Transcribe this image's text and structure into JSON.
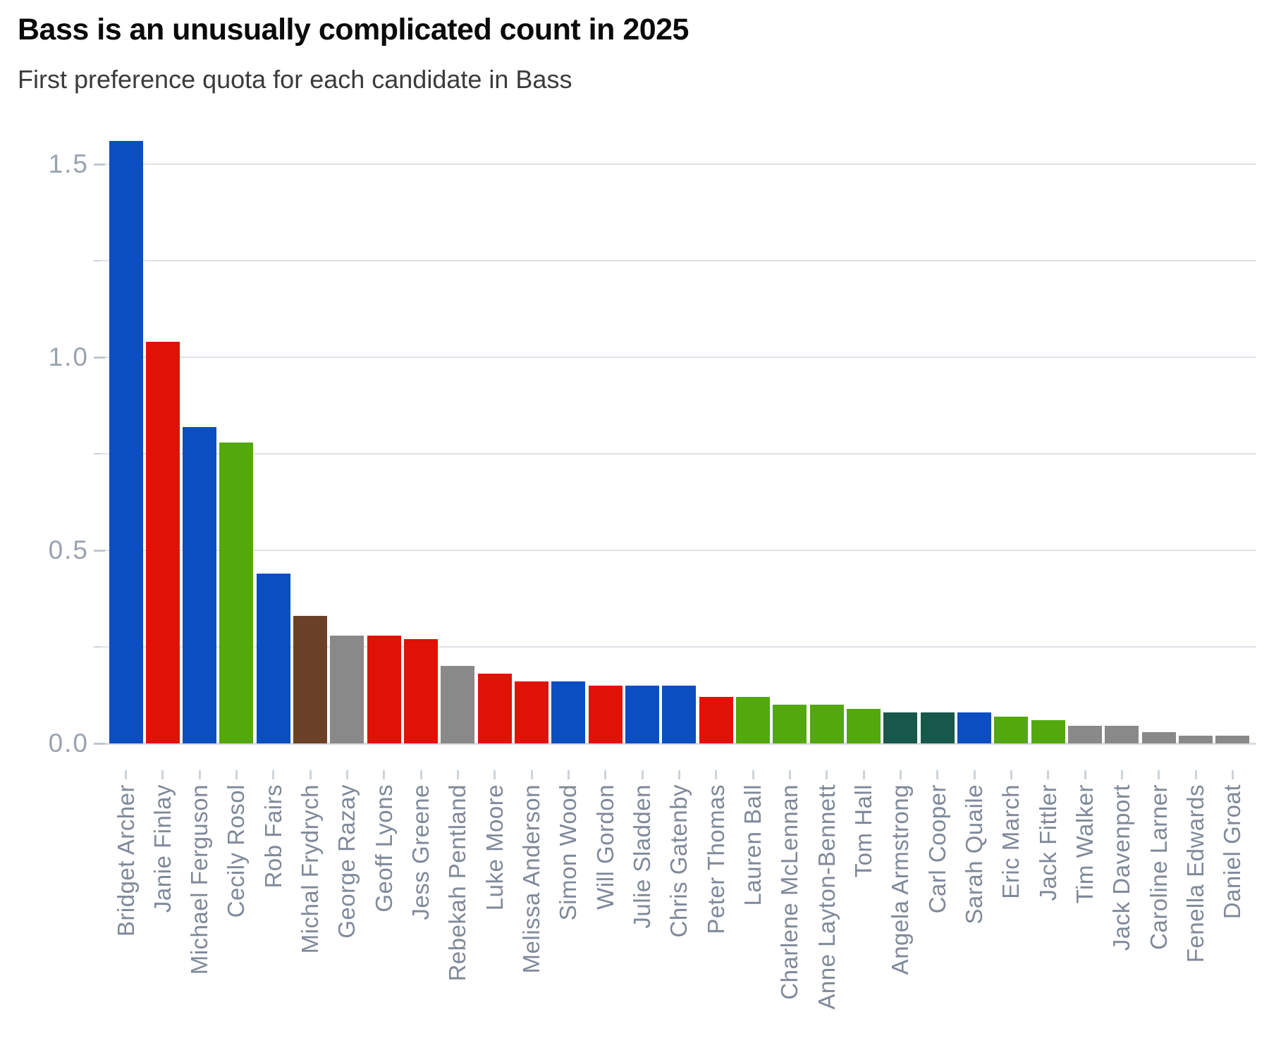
{
  "header": {
    "title": "Bass is an unusually complicated count in 2025",
    "subtitle": "First preference quota for each candidate in Bass"
  },
  "chart_data": {
    "type": "bar",
    "title": "Bass is an unusually complicated count in 2025",
    "subtitle": "First preference quota for each candidate in Bass",
    "xlabel": "",
    "ylabel": "",
    "ylim": [
      0,
      1.62
    ],
    "grid": "horizontal",
    "grid_step": 0.25,
    "grid_max": 1.5,
    "legend": "none",
    "yticks": [
      {
        "value": 0.0,
        "label": "0.0"
      },
      {
        "value": 0.5,
        "label": "0.5"
      },
      {
        "value": 1.0,
        "label": "1.0"
      },
      {
        "value": 1.5,
        "label": "1.5"
      }
    ],
    "minor_gridlines": [
      0.25,
      0.75,
      1.25
    ],
    "palette": {
      "blue": "#0b4ec2",
      "red": "#e01206",
      "green": "#53a80e",
      "brown": "#6b4127",
      "gray": "#898989",
      "darkgreen": "#16594a"
    },
    "axis_colors": {
      "gridline": "#dfe3e9",
      "baseline": "#d6dbe3",
      "major_tick": "#bfc7d1",
      "minor_tick": "#ccd3db",
      "y_label": "#99a2af",
      "x_label": "#7f8999"
    },
    "categories": [
      "Bridget Archer",
      "Janie Finlay",
      "Michael Ferguson",
      "Cecily Rosol",
      "Rob Fairs",
      "Michal Frydrych",
      "George Razay",
      "Geoff Lyons",
      "Jess Greene",
      "Rebekah Pentland",
      "Luke Moore",
      "Melissa Anderson",
      "Simon Wood",
      "Will Gordon",
      "Julie Sladden",
      "Chris Gatenby",
      "Peter Thomas",
      "Lauren Ball",
      "Charlene McLennan",
      "Anne Layton-Bennett",
      "Tom Hall",
      "Angela Armstrong",
      "Carl Cooper",
      "Sarah Quaile",
      "Eric March",
      "Jack Fittler",
      "Tim Walker",
      "Jack Davenport",
      "Caroline Larner",
      "Fenella Edwards",
      "Daniel Groat"
    ],
    "values": [
      1.56,
      1.04,
      0.82,
      0.78,
      0.44,
      0.33,
      0.28,
      0.28,
      0.27,
      0.2,
      0.18,
      0.16,
      0.16,
      0.15,
      0.15,
      0.15,
      0.12,
      0.12,
      0.1,
      0.1,
      0.09,
      0.08,
      0.08,
      0.08,
      0.07,
      0.06,
      0.045,
      0.045,
      0.03,
      0.02,
      0.02
    ],
    "bars": [
      {
        "label": "Bridget Archer",
        "value": 1.56,
        "color": "blue"
      },
      {
        "label": "Janie Finlay",
        "value": 1.04,
        "color": "red"
      },
      {
        "label": "Michael Ferguson",
        "value": 0.82,
        "color": "blue"
      },
      {
        "label": "Cecily Rosol",
        "value": 0.78,
        "color": "green"
      },
      {
        "label": "Rob Fairs",
        "value": 0.44,
        "color": "blue"
      },
      {
        "label": "Michal Frydrych",
        "value": 0.33,
        "color": "brown"
      },
      {
        "label": "George Razay",
        "value": 0.28,
        "color": "gray"
      },
      {
        "label": "Geoff Lyons",
        "value": 0.28,
        "color": "red"
      },
      {
        "label": "Jess Greene",
        "value": 0.27,
        "color": "red"
      },
      {
        "label": "Rebekah Pentland",
        "value": 0.2,
        "color": "gray"
      },
      {
        "label": "Luke Moore",
        "value": 0.18,
        "color": "red"
      },
      {
        "label": "Melissa Anderson",
        "value": 0.16,
        "color": "red"
      },
      {
        "label": "Simon Wood",
        "value": 0.16,
        "color": "blue"
      },
      {
        "label": "Will Gordon",
        "value": 0.15,
        "color": "red"
      },
      {
        "label": "Julie Sladden",
        "value": 0.15,
        "color": "blue"
      },
      {
        "label": "Chris Gatenby",
        "value": 0.15,
        "color": "blue"
      },
      {
        "label": "Peter Thomas",
        "value": 0.12,
        "color": "red"
      },
      {
        "label": "Lauren Ball",
        "value": 0.12,
        "color": "green"
      },
      {
        "label": "Charlene McLennan",
        "value": 0.1,
        "color": "green"
      },
      {
        "label": "Anne Layton-Bennett",
        "value": 0.1,
        "color": "green"
      },
      {
        "label": "Tom Hall",
        "value": 0.09,
        "color": "green"
      },
      {
        "label": "Angela Armstrong",
        "value": 0.08,
        "color": "darkgreen"
      },
      {
        "label": "Carl Cooper",
        "value": 0.08,
        "color": "darkgreen"
      },
      {
        "label": "Sarah Quaile",
        "value": 0.08,
        "color": "blue"
      },
      {
        "label": "Eric March",
        "value": 0.07,
        "color": "green"
      },
      {
        "label": "Jack Fittler",
        "value": 0.06,
        "color": "green"
      },
      {
        "label": "Tim Walker",
        "value": 0.045,
        "color": "gray"
      },
      {
        "label": "Jack Davenport",
        "value": 0.045,
        "color": "gray"
      },
      {
        "label": "Caroline Larner",
        "value": 0.03,
        "color": "gray"
      },
      {
        "label": "Fenella Edwards",
        "value": 0.02,
        "color": "gray"
      },
      {
        "label": "Daniel Groat",
        "value": 0.02,
        "color": "gray"
      }
    ]
  }
}
